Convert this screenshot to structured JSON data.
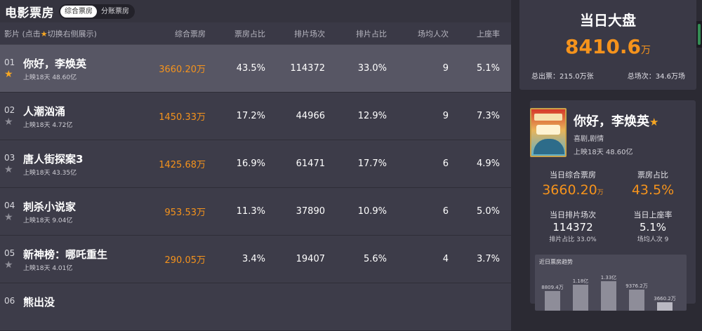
{
  "header": {
    "title": "电影票房",
    "tabs": [
      "综合票房",
      "分账票房"
    ]
  },
  "columns": {
    "film_prefix": "影片 (点击",
    "film_suffix": "切换右侧展示)",
    "box": "综合票房",
    "box_share": "票房占比",
    "shows": "排片场次",
    "show_share": "排片占比",
    "avg_viewers": "场均人次",
    "occupancy": "上座率"
  },
  "rows": [
    {
      "rank": "01",
      "name": "你好，李焕英",
      "sub": "上映18天  48.60亿",
      "box": "3660.20万",
      "box_share": "43.5%",
      "shows": "114372",
      "show_share": "33.0%",
      "avg": "9",
      "occ": "5.1%"
    },
    {
      "rank": "02",
      "name": "人潮汹涌",
      "sub": "上映18天  4.72亿",
      "box": "1450.33万",
      "box_share": "17.2%",
      "shows": "44966",
      "show_share": "12.9%",
      "avg": "9",
      "occ": "7.3%"
    },
    {
      "rank": "03",
      "name": "唐人街探案3",
      "sub": "上映18天  43.35亿",
      "box": "1425.68万",
      "box_share": "16.9%",
      "shows": "61471",
      "show_share": "17.7%",
      "avg": "6",
      "occ": "4.9%"
    },
    {
      "rank": "04",
      "name": "刺杀小说家",
      "sub": "上映18天  9.04亿",
      "box": "953.53万",
      "box_share": "11.3%",
      "shows": "37890",
      "show_share": "10.9%",
      "avg": "6",
      "occ": "5.0%"
    },
    {
      "rank": "05",
      "name": "新神榜：哪吒重生",
      "sub": "上映18天  4.01亿",
      "box": "290.05万",
      "box_share": "3.4%",
      "shows": "19407",
      "show_share": "5.6%",
      "avg": "4",
      "occ": "3.7%"
    },
    {
      "rank": "06",
      "name": "熊出没",
      "sub": "",
      "box": "",
      "box_share": "",
      "shows": "",
      "show_share": "",
      "avg": "",
      "occ": ""
    }
  ],
  "dashboard": {
    "title": "当日大盘",
    "total_value": "8410.6",
    "total_unit": "万",
    "tickets": "总出票：215.0万张",
    "shows": "总场次：34.6万场"
  },
  "detail": {
    "name": "你好，李焕英",
    "genre": "喜剧,剧情",
    "release": "上映18天  48.60亿",
    "box_label": "当日综合票房",
    "box_value": "3660.20",
    "box_unit": "万",
    "share_label": "票房占比",
    "share_value": "43.5%",
    "shows_label": "当日排片场次",
    "shows_value": "114372",
    "shows_sub": "排片占比 33.0%",
    "occ_label": "当日上座率",
    "occ_value": "5.1%",
    "occ_sub": "场均人次 9"
  },
  "trend": {
    "title": "近日票房趋势",
    "labels": [
      "8809.4万",
      "1.18亿",
      "1.33亿",
      "9376.2万",
      "3660.2万"
    ],
    "values": [
      8809.4,
      11800,
      13300,
      9376.2,
      3660.2
    ]
  },
  "colors": {
    "accent": "#f5931c",
    "star": "#f5a623"
  }
}
